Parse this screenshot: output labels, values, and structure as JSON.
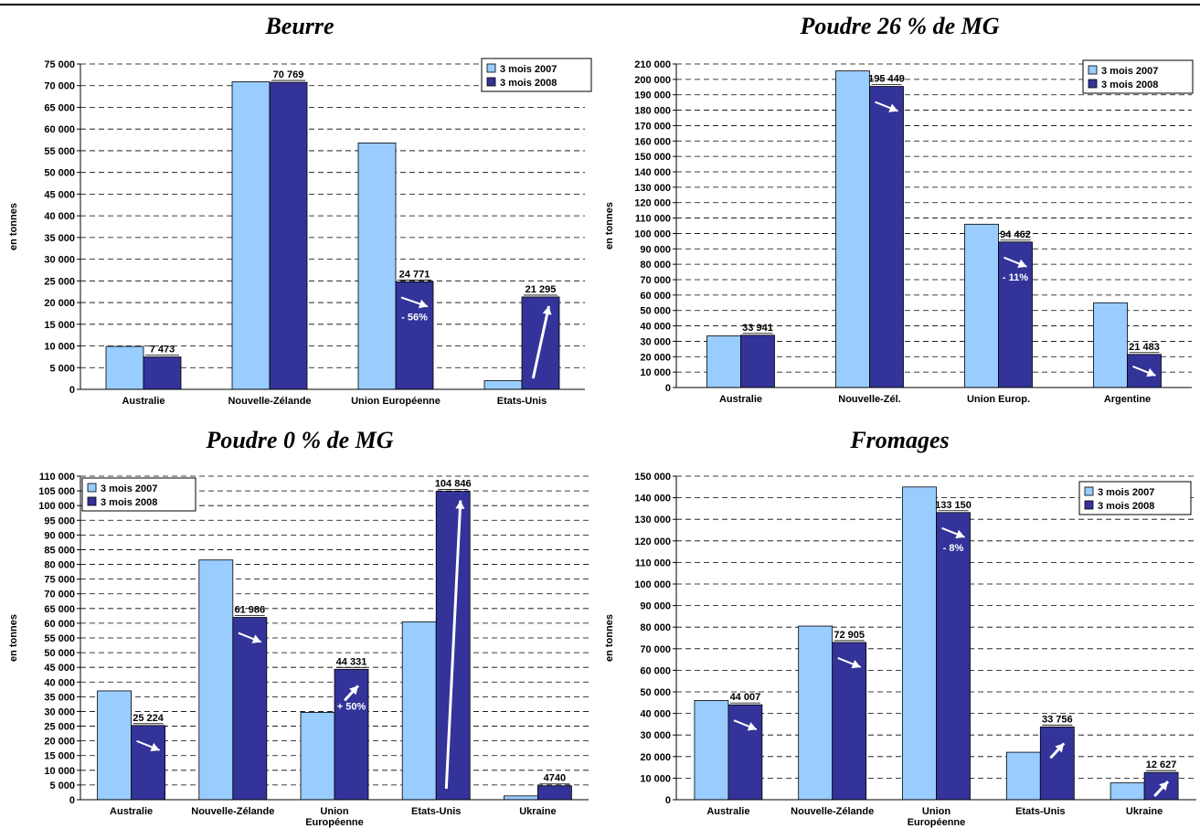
{
  "colors": {
    "light": "#99ccff",
    "dark": "#333399",
    "arrow": "#ffffff"
  },
  "chart_data": [
    {
      "id": "beurre",
      "type": "bar",
      "title": "Beurre",
      "ylabel": "en tonnes",
      "ylim": [
        0,
        75000
      ],
      "ytick_step": 5000,
      "legend_position": "top-right",
      "categories": [
        "Australie",
        "Nouvelle-Zélande",
        "Union Européenne",
        "Etats-Unis"
      ],
      "series": [
        {
          "name": "3 mois 2007",
          "values": [
            9900,
            70900,
            56800,
            2000
          ]
        },
        {
          "name": "3 mois 2008",
          "values": [
            7473,
            70769,
            24771,
            21295
          ]
        }
      ],
      "labels": [
        "7 473",
        "70 769",
        "24 771",
        "21 295"
      ],
      "changes": [
        "",
        "",
        "- 56%",
        ""
      ],
      "arrows": [
        "",
        "",
        "down",
        "up-steep"
      ]
    },
    {
      "id": "poudre26",
      "type": "bar",
      "title": "Poudre 26 % de MG",
      "ylabel": "en tonnes",
      "ylim": [
        0,
        210000
      ],
      "ytick_step": 10000,
      "legend_position": "top-right",
      "categories": [
        "Australie",
        "Nouvelle-Zél.",
        "Union Europ.",
        "Argentine"
      ],
      "series": [
        {
          "name": "3 mois 2007",
          "values": [
            33500,
            205500,
            106000,
            55000
          ]
        },
        {
          "name": "3 mois 2008",
          "values": [
            33941,
            195449,
            94462,
            21483
          ]
        }
      ],
      "labels": [
        "33 941",
        "195 449",
        "94 462",
        "21 483"
      ],
      "changes": [
        "",
        "",
        "- 11%",
        ""
      ],
      "arrows": [
        "",
        "down",
        "down",
        "down"
      ]
    },
    {
      "id": "poudre0",
      "type": "bar",
      "title": "Poudre 0 % de MG",
      "ylabel": "en tonnes",
      "ylim": [
        0,
        110000
      ],
      "ytick_step": 5000,
      "legend_position": "top-left",
      "categories": [
        "Australie",
        "Nouvelle-Zélande",
        "Union Européenne",
        "Etats-Unis",
        "Ukraine"
      ],
      "series": [
        {
          "name": "3 mois 2007",
          "values": [
            37000,
            81500,
            29700,
            60500,
            1300
          ]
        },
        {
          "name": "3 mois 2008",
          "values": [
            25224,
            61986,
            44331,
            104846,
            4740
          ]
        }
      ],
      "labels": [
        "25 224",
        "61 986",
        "44 331",
        "104 846",
        "4740"
      ],
      "changes": [
        "",
        "",
        "+ 50%",
        "",
        ""
      ],
      "arrows": [
        "down",
        "down",
        "up",
        "up-steep",
        ""
      ]
    },
    {
      "id": "fromages",
      "type": "bar",
      "title": "Fromages",
      "ylabel": "en tonnes",
      "ylim": [
        0,
        150000
      ],
      "ytick_step": 10000,
      "legend_position": "top-right",
      "categories": [
        "Australie",
        "Nouvelle-Zélande",
        "Union Européenne",
        "Etats-Unis",
        "Ukraine"
      ],
      "series": [
        {
          "name": "3 mois 2007",
          "values": [
            46000,
            80500,
            145000,
            22000,
            7800
          ]
        },
        {
          "name": "3 mois 2008",
          "values": [
            44007,
            72905,
            133150,
            33756,
            12627
          ]
        }
      ],
      "labels": [
        "44 007",
        "72 905",
        "133 150",
        "33 756",
        "12 627"
      ],
      "changes": [
        "",
        "",
        "- 8%",
        "",
        ""
      ],
      "arrows": [
        "down",
        "down",
        "down",
        "up",
        "up"
      ]
    }
  ]
}
